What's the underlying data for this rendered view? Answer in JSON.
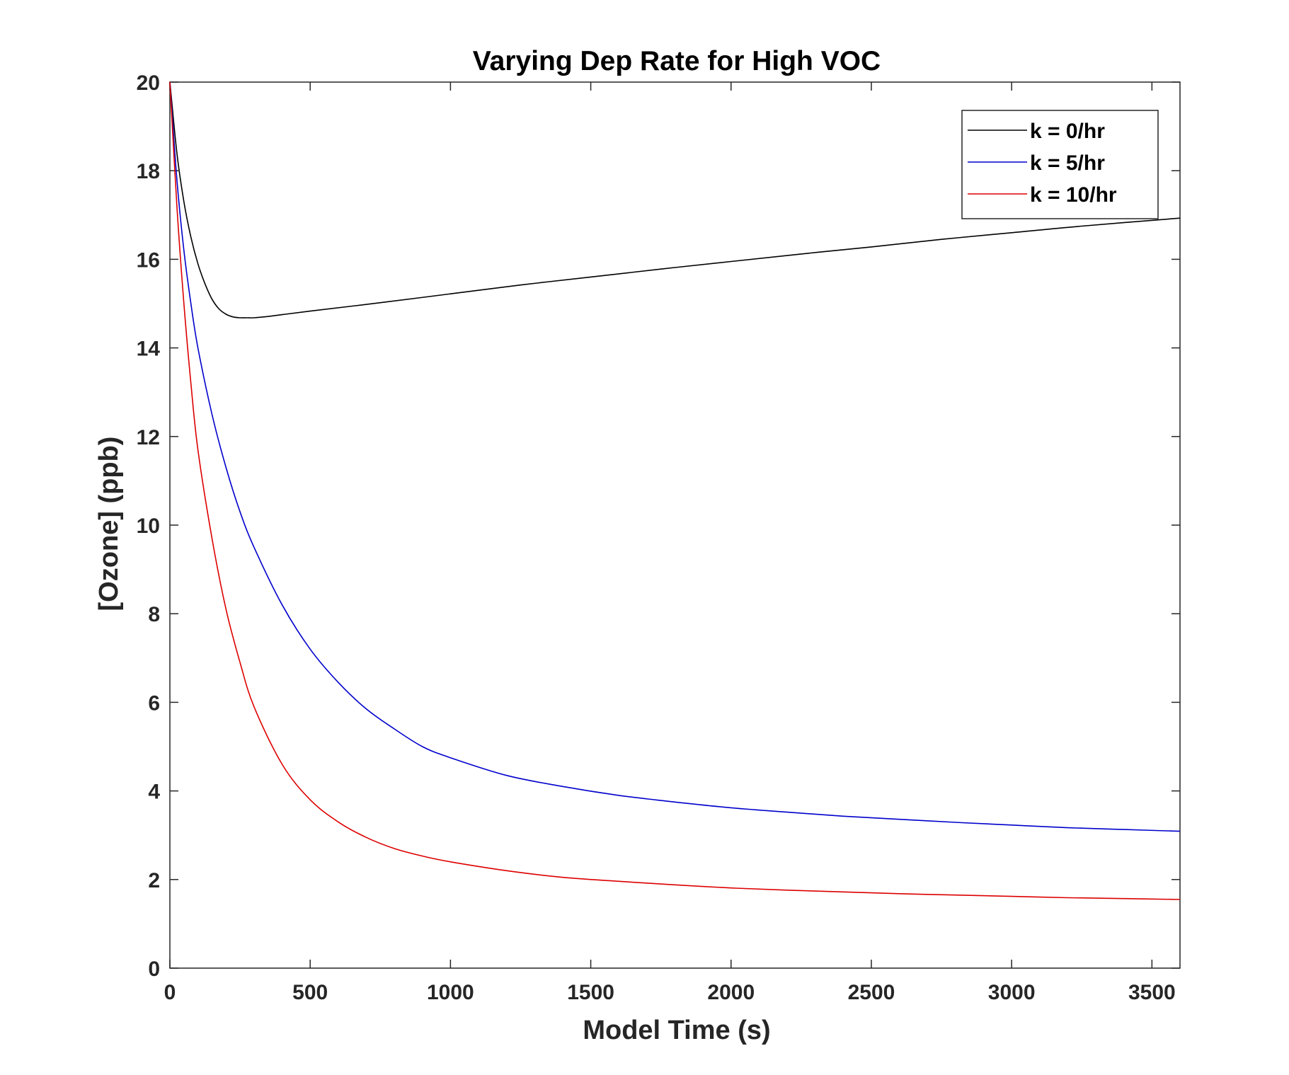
{
  "chart_data": {
    "type": "line",
    "title": "Varying Dep Rate for High VOC",
    "xlabel": "Model Time (s)",
    "ylabel": "[Ozone] (ppb)",
    "xlim": [
      0,
      3600
    ],
    "ylim": [
      0,
      20
    ],
    "xticks": [
      0,
      500,
      1000,
      1500,
      2000,
      2500,
      3000,
      3500
    ],
    "yticks": [
      0,
      2,
      4,
      6,
      8,
      10,
      12,
      14,
      16,
      18,
      20
    ],
    "grid": false,
    "legend_position": "top-right",
    "series": [
      {
        "name": "k = 0/hr",
        "color": "#000000",
        "x": [
          0,
          25,
          50,
          75,
          100,
          125,
          150,
          175,
          200,
          225,
          250,
          275,
          300,
          350,
          400,
          500,
          750,
          1000,
          1250,
          1500,
          1750,
          2000,
          2250,
          2500,
          2750,
          3000,
          3250,
          3600
        ],
        "y": [
          20,
          18.4,
          17.3,
          16.5,
          15.9,
          15.45,
          15.1,
          14.88,
          14.76,
          14.7,
          14.68,
          14.68,
          14.68,
          14.71,
          14.75,
          14.83,
          15.02,
          15.22,
          15.42,
          15.6,
          15.78,
          15.95,
          16.12,
          16.28,
          16.45,
          16.6,
          16.75,
          16.93
        ]
      },
      {
        "name": "k = 5/hr",
        "color": "#0000cc",
        "x": [
          0,
          25,
          50,
          75,
          100,
          150,
          200,
          250,
          300,
          400,
          500,
          600,
          700,
          800,
          900,
          1000,
          1200,
          1400,
          1600,
          1800,
          2000,
          2200,
          2400,
          2600,
          2800,
          3000,
          3200,
          3400,
          3600
        ],
        "y": [
          20,
          17.8,
          16.2,
          15.0,
          14.0,
          12.5,
          11.3,
          10.3,
          9.5,
          8.2,
          7.2,
          6.45,
          5.85,
          5.4,
          5.0,
          4.75,
          4.35,
          4.1,
          3.9,
          3.75,
          3.62,
          3.52,
          3.43,
          3.36,
          3.29,
          3.23,
          3.17,
          3.13,
          3.09
        ]
      },
      {
        "name": "k = 10/hr",
        "color": "#dd0000",
        "x": [
          0,
          25,
          50,
          75,
          100,
          150,
          200,
          250,
          300,
          400,
          500,
          600,
          700,
          800,
          900,
          1000,
          1200,
          1400,
          1600,
          1800,
          2000,
          2200,
          2400,
          2600,
          2800,
          3000,
          3200,
          3400,
          3600
        ],
        "y": [
          20,
          17.2,
          15.0,
          13.2,
          11.7,
          9.7,
          8.1,
          6.9,
          5.9,
          4.6,
          3.8,
          3.3,
          2.95,
          2.7,
          2.53,
          2.4,
          2.2,
          2.05,
          1.96,
          1.88,
          1.81,
          1.76,
          1.72,
          1.68,
          1.65,
          1.62,
          1.59,
          1.57,
          1.55
        ]
      }
    ]
  }
}
